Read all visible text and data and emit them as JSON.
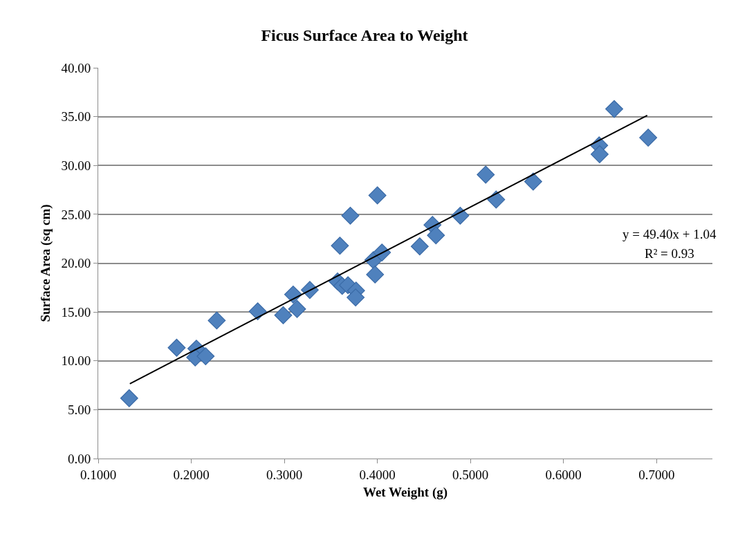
{
  "chart_data": {
    "type": "scatter",
    "title": "Ficus Surface Area to Weight",
    "xlabel": "Wet Weight (g)",
    "ylabel": "Surface Area (sq cm)",
    "marker": "diamond",
    "grid": "y",
    "legend": false,
    "xlim": [
      0.1,
      0.76
    ],
    "ylim": [
      0,
      40
    ],
    "xticks": [
      {
        "value": 0.1,
        "label": "0.1000"
      },
      {
        "value": 0.2,
        "label": "0.2000"
      },
      {
        "value": 0.3,
        "label": "0.3000"
      },
      {
        "value": 0.4,
        "label": "0.4000"
      },
      {
        "value": 0.5,
        "label": "0.5000"
      },
      {
        "value": 0.6,
        "label": "0.6000"
      },
      {
        "value": 0.7,
        "label": "0.7000"
      }
    ],
    "yticks": [
      {
        "value": 0,
        "label": "0.00"
      },
      {
        "value": 5,
        "label": "5.00"
      },
      {
        "value": 10,
        "label": "10.00"
      },
      {
        "value": 15,
        "label": "15.00"
      },
      {
        "value": 20,
        "label": "20.00"
      },
      {
        "value": 25,
        "label": "25.00"
      },
      {
        "value": 30,
        "label": "30.00"
      },
      {
        "value": 35,
        "label": "35.00"
      },
      {
        "value": 40,
        "label": "40.00"
      }
    ],
    "annotations": [
      "y = 49.40x + 1.04",
      "R² = 0.93"
    ],
    "series": [
      {
        "color": "#4f81bd",
        "x": [
          0.1333,
          0.1843,
          0.2055,
          0.2042,
          0.2154,
          0.2274,
          0.2714,
          0.2988,
          0.3095,
          0.3137,
          0.3274,
          0.3597,
          0.3709,
          0.4,
          0.3572,
          0.3622,
          0.3684,
          0.3771,
          0.3766,
          0.3957,
          0.4049,
          0.3975,
          0.4455,
          0.4592,
          0.4629,
          0.489,
          0.5164,
          0.5276,
          0.5674,
          0.6383,
          0.6388,
          0.6545,
          0.691
        ],
        "values": [
          6.18,
          11.34,
          11.25,
          10.35,
          10.47,
          14.13,
          15.07,
          14.67,
          16.79,
          15.31,
          17.26,
          21.79,
          24.86,
          26.94,
          18.13,
          17.67,
          17.74,
          17.19,
          16.49,
          20.31,
          21.09,
          18.84,
          21.72,
          23.92,
          22.85,
          24.86,
          29.06,
          26.51,
          28.35,
          32.05,
          31.15,
          35.78,
          32.85
        ]
      },
      {
        "type": "line",
        "color": "#000000",
        "marker": "none",
        "x": [
          0.134,
          0.69
        ],
        "values": [
          7.66,
          35.13
        ]
      }
    ]
  }
}
